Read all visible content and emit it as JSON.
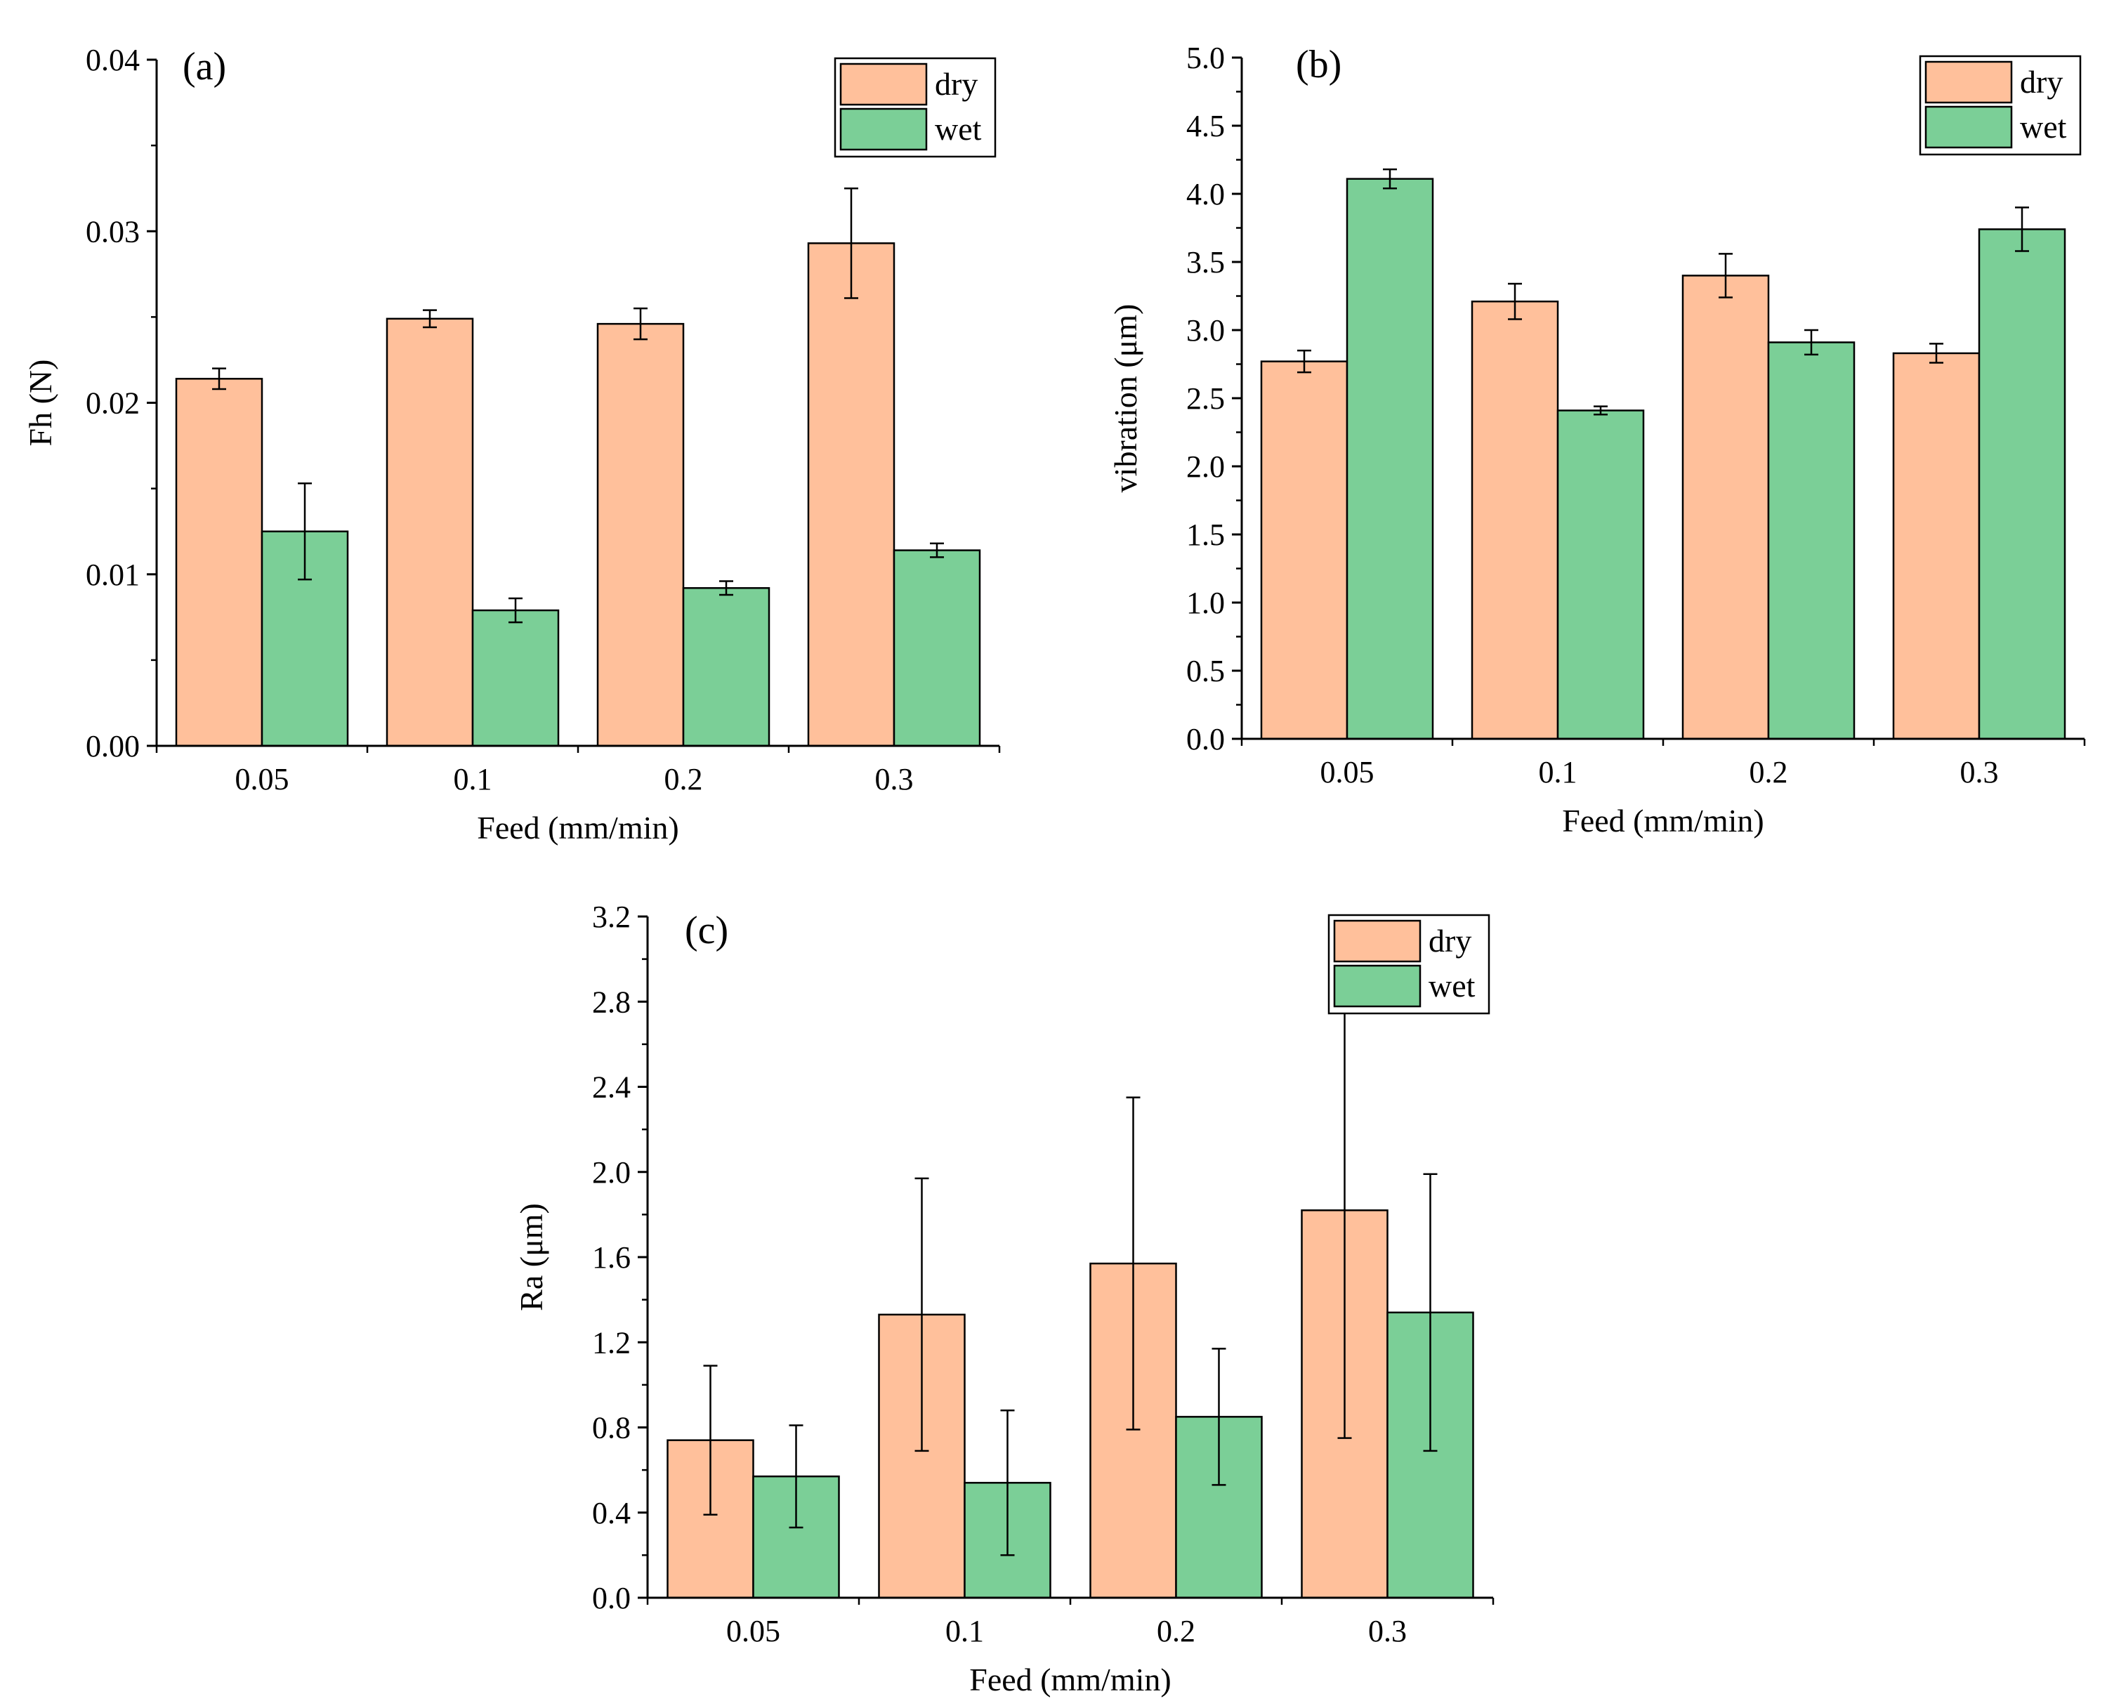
{
  "colors": {
    "dry": "#FFC09B",
    "wet": "#7BCF97",
    "edge": "#000000"
  },
  "chart_data": [
    {
      "panel": "(a)",
      "type": "bar",
      "categories": [
        "0.05",
        "0.1",
        "0.2",
        "0.3"
      ],
      "xlabel": "Feed (mm/min)",
      "ylabel": "Fh (N)",
      "ylim": [
        0,
        0.04
      ],
      "yticks": [
        "0.00",
        "0.01",
        "0.02",
        "0.03",
        "0.04"
      ],
      "ytick_values": [
        0,
        0.01,
        0.02,
        0.03,
        0.04
      ],
      "minor_ticks": true,
      "legend": {
        "position": "top-right",
        "entries": [
          "dry",
          "wet"
        ]
      },
      "series": [
        {
          "name": "dry",
          "values": [
            0.0214,
            0.0249,
            0.0246,
            0.0293
          ],
          "errors": [
            0.0006,
            0.0005,
            0.0009,
            0.0032
          ]
        },
        {
          "name": "wet",
          "values": [
            0.0125,
            0.0079,
            0.0092,
            0.0114
          ],
          "errors": [
            0.0028,
            0.0007,
            0.0004,
            0.0004
          ]
        }
      ]
    },
    {
      "panel": "(b)",
      "type": "bar",
      "categories": [
        "0.05",
        "0.1",
        "0.2",
        "0.3"
      ],
      "xlabel": "Feed (mm/min)",
      "ylabel": "vibration (μm)",
      "ylim": [
        0,
        5.0
      ],
      "yticks": [
        "0.0",
        "0.5",
        "1.0",
        "1.5",
        "2.0",
        "2.5",
        "3.0",
        "3.5",
        "4.0",
        "4.5",
        "5.0"
      ],
      "ytick_values": [
        0,
        0.5,
        1.0,
        1.5,
        2.0,
        2.5,
        3.0,
        3.5,
        4.0,
        4.5,
        5.0
      ],
      "minor_ticks": true,
      "legend": {
        "position": "top-right",
        "entries": [
          "dry",
          "wet"
        ]
      },
      "series": [
        {
          "name": "dry",
          "values": [
            2.77,
            3.21,
            3.4,
            2.83
          ],
          "errors": [
            0.08,
            0.13,
            0.16,
            0.07
          ]
        },
        {
          "name": "wet",
          "values": [
            4.11,
            2.41,
            2.91,
            3.74
          ],
          "errors": [
            0.07,
            0.03,
            0.09,
            0.16
          ]
        }
      ]
    },
    {
      "panel": "(c)",
      "type": "bar",
      "categories": [
        "0.05",
        "0.1",
        "0.2",
        "0.3"
      ],
      "xlabel": "Feed (mm/min)",
      "ylabel": "Ra (μm)",
      "ylim": [
        0,
        3.2
      ],
      "yticks": [
        "0.0",
        "0.4",
        "0.8",
        "1.2",
        "1.6",
        "2.0",
        "2.4",
        "2.8",
        "3.2"
      ],
      "ytick_values": [
        0,
        0.4,
        0.8,
        1.2,
        1.6,
        2.0,
        2.4,
        2.8,
        3.2
      ],
      "minor_ticks": true,
      "legend": {
        "position": "top-right",
        "entries": [
          "dry",
          "wet"
        ]
      },
      "series": [
        {
          "name": "dry",
          "values": [
            0.74,
            1.33,
            1.57,
            1.82
          ],
          "errors": [
            0.35,
            0.64,
            0.78,
            1.07
          ]
        },
        {
          "name": "wet",
          "values": [
            0.57,
            0.54,
            0.85,
            1.34
          ],
          "errors": [
            0.24,
            0.34,
            0.32,
            0.65
          ]
        }
      ]
    }
  ]
}
